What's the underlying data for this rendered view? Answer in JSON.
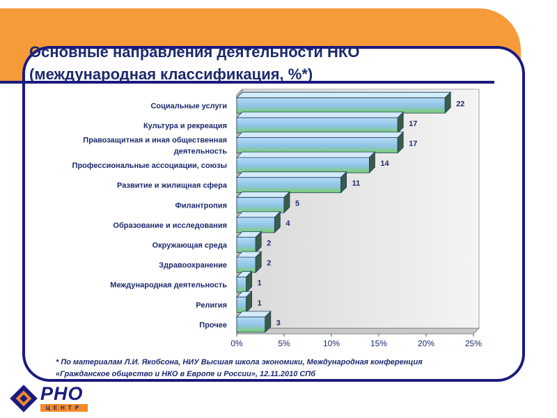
{
  "title": {
    "line1": "Основные направления деятельности НКО",
    "line2": "(международная классификация, %*)"
  },
  "footnote": {
    "line1": "* По материалам Л.И. Якобсона, НИУ Высшая школа экономики, Международная конференция",
    "line2": "«Гражданское общество и НКО в Европе и России», 12.11.2010 СПб"
  },
  "logo": {
    "text": "PHO",
    "subtext": "ЦЕНТР"
  },
  "colors": {
    "brand_orange": "#f79a3a",
    "frame_navy": "#1a1a80",
    "bar_top": "#9ecbf0",
    "bar_bottom": "#7ccf6a"
  },
  "chart_data": {
    "type": "bar",
    "orientation": "horizontal",
    "categories": [
      [
        "Социальные услуги"
      ],
      [
        "Культура и рекреация"
      ],
      [
        "Правозащитная и иная общественная",
        "деятельность"
      ],
      [
        "Профессиональные ассоциации, союзы"
      ],
      [
        "Развитие и жилищная сфера"
      ],
      [
        "Филантропия"
      ],
      [
        "Образование и исследования"
      ],
      [
        "Окружающая среда"
      ],
      [
        "Здравоохранение"
      ],
      [
        "Международная деятельность"
      ],
      [
        "Религия"
      ],
      [
        "Прочее"
      ]
    ],
    "values": [
      22,
      17,
      17,
      14,
      11,
      5,
      4,
      2,
      2,
      1,
      1,
      3
    ],
    "value_labels": [
      "22",
      "17",
      "17",
      "14",
      "11",
      "5",
      "4",
      "2",
      "2",
      "1",
      "1",
      "3"
    ],
    "xlim": [
      0,
      25
    ],
    "xticks": [
      0,
      5,
      10,
      15,
      20,
      25
    ],
    "xtick_labels": [
      "0%",
      "5%",
      "10%",
      "15%",
      "20%",
      "25%"
    ],
    "grid": false,
    "style": "3d-gradient"
  }
}
